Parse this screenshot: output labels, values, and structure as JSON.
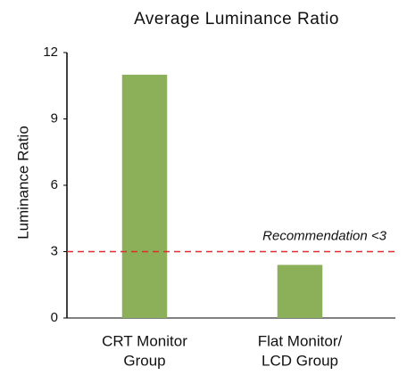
{
  "chart_data": {
    "type": "bar",
    "title": "Average Luminance Ratio",
    "y_label": "Luminance Ratio",
    "categories": [
      [
        "CRT Monitor",
        "Group"
      ],
      [
        "Flat Monitor/",
        "LCD Group"
      ]
    ],
    "values": [
      11,
      2.4
    ],
    "color": "#8cb05a",
    "ylim": [
      0,
      12
    ],
    "yticks": [
      0,
      3,
      6,
      9,
      12
    ],
    "reference_line": {
      "value": 3,
      "label": "Recommendation <3",
      "color": "#e8262b"
    }
  }
}
